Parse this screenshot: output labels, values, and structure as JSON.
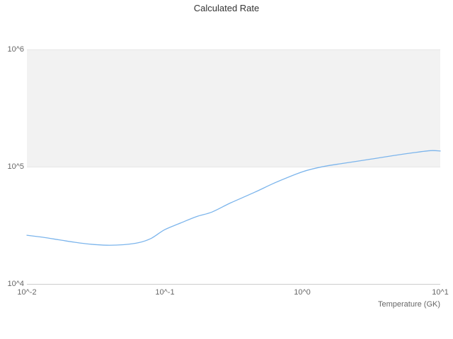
{
  "chart": {
    "title": "Calculated Rate",
    "x_axis_title": "Temperature (GK)"
  },
  "chart_data": {
    "type": "line",
    "title": "Calculated Rate",
    "xlabel": "Temperature (GK)",
    "ylabel": "",
    "x_scale": "log",
    "y_scale": "log",
    "xlim": [
      0.01,
      10
    ],
    "ylim": [
      10000,
      1000000
    ],
    "x_tick_values": [
      0.01,
      0.1,
      1,
      10
    ],
    "x_tick_labels": [
      "10^-2",
      "10^-1",
      "10^0",
      "10^1"
    ],
    "y_tick_values": [
      10000,
      100000,
      1000000
    ],
    "y_tick_labels": [
      "10^4",
      "10^5",
      "10^6"
    ],
    "grid": true,
    "legend": "none",
    "line_color": "#7cb5ec",
    "band_color": "#f2f2f2",
    "gridline_color": "#e6e6e6",
    "axis_line_color": "#cccccc",
    "series": [
      {
        "name": "Calculated Rate",
        "x": [
          0.01,
          0.013,
          0.017,
          0.022,
          0.028,
          0.038,
          0.05,
          0.065,
          0.08,
          0.1,
          0.13,
          0.17,
          0.22,
          0.3,
          0.45,
          0.65,
          1.0,
          1.4,
          2.0,
          3.0,
          4.5,
          6.5,
          8.5,
          10.0
        ],
        "y": [
          26000,
          25000,
          23800,
          22700,
          21900,
          21400,
          21600,
          22500,
          24500,
          29000,
          33000,
          37500,
          41000,
          49000,
          60500,
          74000,
          90500,
          100000,
          107000,
          115000,
          124000,
          132000,
          137000,
          136000
        ]
      }
    ]
  }
}
